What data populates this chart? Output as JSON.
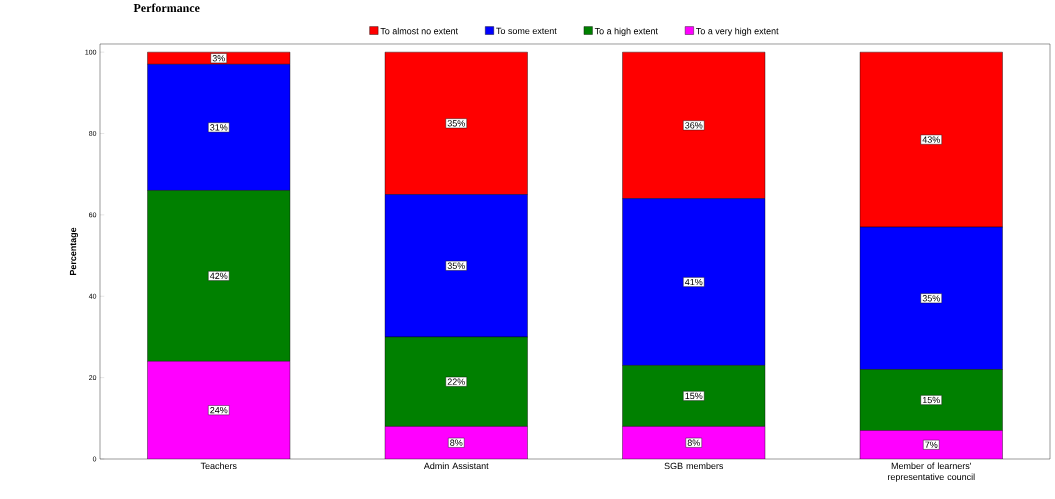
{
  "chart_data": {
    "type": "bar",
    "title": "Performance",
    "ylabel": "Percentage",
    "stacked": true,
    "legend": "top",
    "categories": [
      "Teachers",
      "Admin Assistant",
      "SGB members",
      "Member of learners' representative council"
    ],
    "series": [
      {
        "name": "To a very high extent",
        "color": "#ff00ff",
        "values": [
          24,
          8,
          8,
          7
        ],
        "value_labels": [
          "24%",
          "8%",
          "8%",
          "7%"
        ]
      },
      {
        "name": "To a high extent",
        "color": "#008000",
        "values": [
          42,
          22,
          15,
          15
        ],
        "value_labels": [
          "42%",
          "22%",
          "15%",
          "15%"
        ]
      },
      {
        "name": "To some extent",
        "color": "#0000ff",
        "values": [
          31,
          35,
          41,
          35
        ],
        "value_labels": [
          "31%",
          "35%",
          "41%",
          "35%"
        ]
      },
      {
        "name": "To almost no extent",
        "color": "#ff0000",
        "values": [
          3,
          35,
          36,
          43
        ],
        "value_labels": [
          "3%",
          "35%",
          "36%",
          "43%"
        ]
      }
    ],
    "ylim": [
      0,
      102
    ],
    "yticks": [
      0,
      20,
      40,
      60,
      80,
      100
    ]
  }
}
